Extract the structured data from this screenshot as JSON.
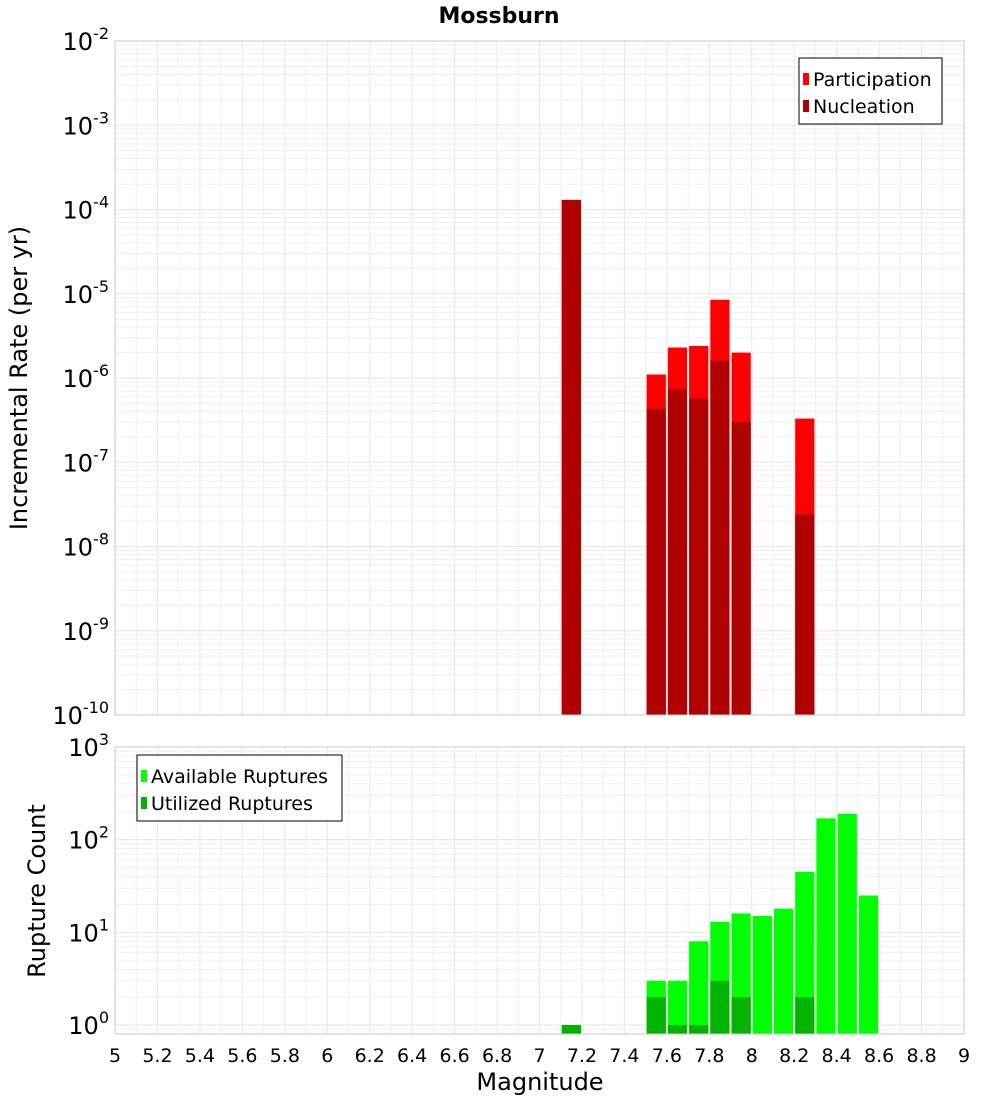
{
  "chart_data": [
    {
      "type": "bar",
      "title": "Mossburn",
      "ylabel": "Incremental Rate (per yr)",
      "xlabel": "",
      "yscale": "log",
      "ylim": [
        1e-10,
        0.01
      ],
      "xlim": [
        5,
        9
      ],
      "bin_width": 0.1,
      "legend": {
        "placement": "top-right",
        "entries": [
          "Participation",
          "Nucleation"
        ]
      },
      "colors": {
        "Participation": "#ff0000",
        "Nucleation": "#b00000"
      },
      "series": [
        {
          "name": "Participation",
          "x": [
            7.15,
            7.55,
            7.65,
            7.75,
            7.85,
            7.95,
            8.25
          ],
          "values": [
            0.00013,
            1.1e-06,
            2.3e-06,
            2.4e-06,
            8.5e-06,
            2e-06,
            3.3e-07
          ]
        },
        {
          "name": "Nucleation",
          "x": [
            7.15,
            7.55,
            7.65,
            7.75,
            7.85,
            7.95,
            8.25
          ],
          "values": [
            0.00013,
            4.3e-07,
            7.3e-07,
            5.7e-07,
            1.6e-06,
            3e-07,
            2.4e-08
          ]
        }
      ]
    },
    {
      "type": "bar",
      "ylabel": "Rupture Count",
      "xlabel": "Magnitude",
      "yscale": "log",
      "ylim": [
        0.8,
        1000
      ],
      "xlim": [
        5,
        9
      ],
      "bin_width": 0.1,
      "legend": {
        "placement": "top-left",
        "entries": [
          "Available Ruptures",
          "Utilized Ruptures"
        ]
      },
      "colors": {
        "Available Ruptures": "#00ff00",
        "Utilized Ruptures": "#00b400"
      },
      "series": [
        {
          "name": "Available Ruptures",
          "x": [
            7.15,
            7.55,
            7.65,
            7.75,
            7.85,
            7.95,
            8.05,
            8.15,
            8.25,
            8.35,
            8.45,
            8.55
          ],
          "values": [
            1,
            3,
            3,
            8,
            13,
            16,
            15,
            18,
            45,
            170,
            190,
            25
          ]
        },
        {
          "name": "Utilized Ruptures",
          "x": [
            7.15,
            7.55,
            7.65,
            7.75,
            7.85,
            7.95,
            8.25
          ],
          "values": [
            1,
            2,
            1,
            1,
            3,
            2,
            2
          ]
        }
      ]
    }
  ],
  "x_tick_labels": [
    "5",
    "5.2",
    "5.4",
    "5.6",
    "5.8",
    "6",
    "6.2",
    "6.4",
    "6.6",
    "6.8",
    "7",
    "7.2",
    "7.4",
    "7.6",
    "7.8",
    "8",
    "8.2",
    "8.4",
    "8.6",
    "8.8",
    "9"
  ]
}
